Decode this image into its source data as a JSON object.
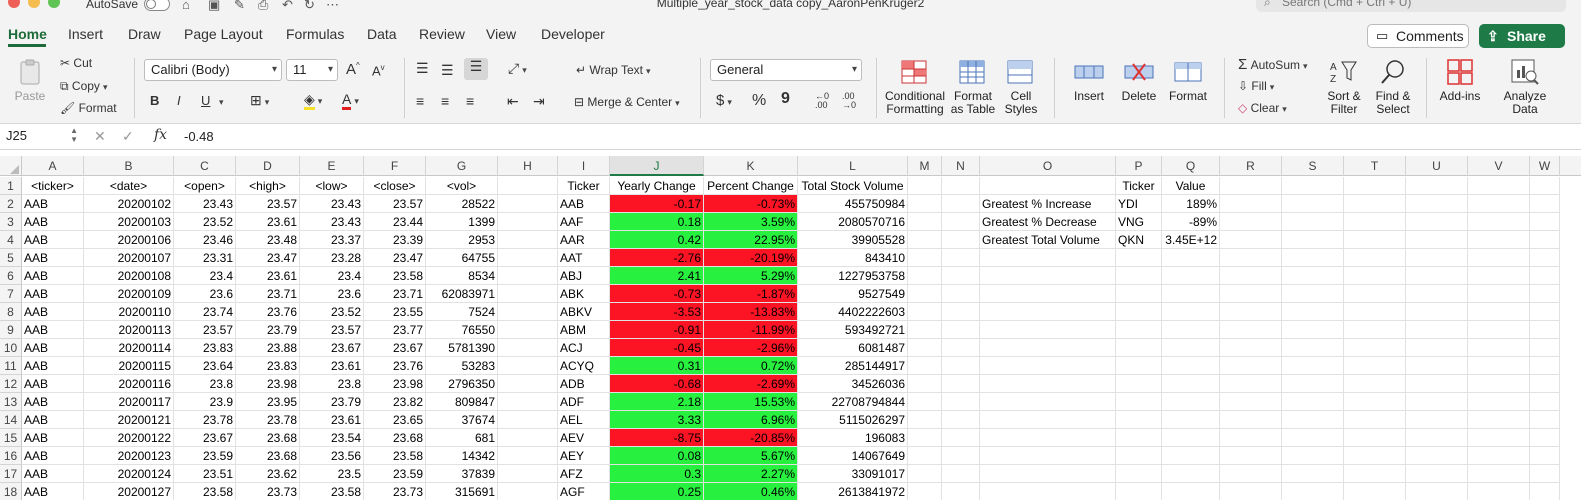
{
  "titlebar": {
    "autosave": "AutoSave",
    "document_title": "Multiple_year_stock_data copy_AaronPenKruger2",
    "search_placeholder": "Search (Cmd + Ctrl + U)"
  },
  "menu": {
    "tabs": [
      "Home",
      "Insert",
      "Draw",
      "Page Layout",
      "Formulas",
      "Data",
      "Review",
      "View",
      "Developer"
    ],
    "active": "Home",
    "comments": "Comments",
    "share": "Share"
  },
  "ribbon": {
    "paste": "Paste",
    "cut": "Cut",
    "copy": "Copy",
    "format": "Format",
    "font_name": "Calibri (Body)",
    "font_size": "11",
    "bold": "B",
    "italic": "I",
    "underline": "U",
    "wrap_text": "Wrap Text",
    "merge_center": "Merge & Center",
    "number_format": "General",
    "currency": "$",
    "percent": "%",
    "comma": "9",
    "inc_decimal": "←0 .00",
    "dec_decimal": ".00 →0",
    "conditional_formatting": [
      "Conditional",
      "Formatting"
    ],
    "format_as_table": [
      "Format",
      "as Table"
    ],
    "cell_styles": [
      "Cell",
      "Styles"
    ],
    "insert": "Insert",
    "delete": "Delete",
    "format_cells": "Format",
    "autosum": "AutoSum",
    "fill": "Fill",
    "clear": "Clear",
    "sort_filter": [
      "Sort &",
      "Filter"
    ],
    "find_select": [
      "Find &",
      "Select"
    ],
    "add_ins": "Add-ins",
    "analyze_data": [
      "Analyze",
      "Data"
    ]
  },
  "formula_bar": {
    "name_box": "J25",
    "fx": "fx",
    "value": "-0.48"
  },
  "colors": {
    "accent": "#1e7a46",
    "negative_fill": "#fc1424",
    "positive_fill": "#27f03f"
  },
  "columns": [
    "A",
    "B",
    "C",
    "D",
    "E",
    "F",
    "G",
    "H",
    "I",
    "J",
    "K",
    "L",
    "M",
    "N",
    "O",
    "P",
    "Q",
    "R",
    "S",
    "T",
    "U",
    "V",
    "W"
  ],
  "selected_column": "J",
  "header_row": {
    "A": "<ticker>",
    "B": "<date>",
    "C": "<open>",
    "D": "<high>",
    "E": "<low>",
    "F": "<close>",
    "G": "<vol>",
    "I": "Ticker",
    "J": "Yearly Change",
    "K": "Percent Change",
    "L": "Total Stock Volume",
    "P": "Ticker",
    "Q": "Value"
  },
  "raw_rows": [
    [
      "AAB",
      "20200102",
      "23.43",
      "23.57",
      "23.43",
      "23.57",
      "28522"
    ],
    [
      "AAB",
      "20200103",
      "23.52",
      "23.61",
      "23.43",
      "23.44",
      "1399"
    ],
    [
      "AAB",
      "20200106",
      "23.46",
      "23.48",
      "23.37",
      "23.39",
      "2953"
    ],
    [
      "AAB",
      "20200107",
      "23.31",
      "23.47",
      "23.28",
      "23.47",
      "64755"
    ],
    [
      "AAB",
      "20200108",
      "23.4",
      "23.61",
      "23.4",
      "23.58",
      "8534"
    ],
    [
      "AAB",
      "20200109",
      "23.6",
      "23.71",
      "23.6",
      "23.71",
      "62083971"
    ],
    [
      "AAB",
      "20200110",
      "23.74",
      "23.76",
      "23.52",
      "23.55",
      "7524"
    ],
    [
      "AAB",
      "20200113",
      "23.57",
      "23.79",
      "23.57",
      "23.77",
      "76550"
    ],
    [
      "AAB",
      "20200114",
      "23.83",
      "23.88",
      "23.67",
      "23.67",
      "5781390"
    ],
    [
      "AAB",
      "20200115",
      "23.64",
      "23.83",
      "23.61",
      "23.76",
      "53283"
    ],
    [
      "AAB",
      "20200116",
      "23.8",
      "23.98",
      "23.8",
      "23.98",
      "2796350"
    ],
    [
      "AAB",
      "20200117",
      "23.9",
      "23.95",
      "23.79",
      "23.82",
      "809847"
    ],
    [
      "AAB",
      "20200121",
      "23.78",
      "23.78",
      "23.61",
      "23.65",
      "37674"
    ],
    [
      "AAB",
      "20200122",
      "23.67",
      "23.68",
      "23.54",
      "23.68",
      "681"
    ],
    [
      "AAB",
      "20200123",
      "23.59",
      "23.68",
      "23.56",
      "23.58",
      "14342"
    ],
    [
      "AAB",
      "20200124",
      "23.51",
      "23.62",
      "23.5",
      "23.59",
      "37839"
    ],
    [
      "AAB",
      "20200127",
      "23.58",
      "23.73",
      "23.58",
      "23.73",
      "315691"
    ]
  ],
  "summary_rows": [
    [
      "AAB",
      "-0.17",
      "-0.73%",
      "455750984",
      "neg"
    ],
    [
      "AAF",
      "0.18",
      "3.59%",
      "2080570716",
      "pos"
    ],
    [
      "AAR",
      "0.42",
      "22.95%",
      "39905528",
      "pos"
    ],
    [
      "AAT",
      "-2.76",
      "-20.19%",
      "843410",
      "neg"
    ],
    [
      "ABJ",
      "2.41",
      "5.29%",
      "1227953758",
      "pos"
    ],
    [
      "ABK",
      "-0.73",
      "-1.87%",
      "9527549",
      "neg"
    ],
    [
      "ABKV",
      "-3.53",
      "-13.83%",
      "4402222603",
      "neg"
    ],
    [
      "ABM",
      "-0.91",
      "-11.99%",
      "593492721",
      "neg"
    ],
    [
      "ACJ",
      "-0.45",
      "-2.96%",
      "6081487",
      "neg"
    ],
    [
      "ACYQ",
      "0.31",
      "0.72%",
      "285144917",
      "pos"
    ],
    [
      "ADB",
      "-0.68",
      "-2.69%",
      "34526036",
      "neg"
    ],
    [
      "ADF",
      "2.18",
      "15.53%",
      "22708794844",
      "pos"
    ],
    [
      "AEL",
      "3.33",
      "6.96%",
      "5115026297",
      "pos"
    ],
    [
      "AEV",
      "-8.75",
      "-20.85%",
      "196083",
      "neg"
    ],
    [
      "AEY",
      "0.08",
      "5.67%",
      "14067649",
      "pos"
    ],
    [
      "AFZ",
      "0.3",
      "2.27%",
      "33091017",
      "pos"
    ],
    [
      "AGF",
      "0.25",
      "0.46%",
      "2613841972",
      "pos"
    ]
  ],
  "greatest": [
    {
      "label": "Greatest % Increase",
      "ticker": "YDI",
      "value": "189%"
    },
    {
      "label": "Greatest % Decrease",
      "ticker": "VNG",
      "value": "-89%"
    },
    {
      "label": "Greatest Total Volume",
      "ticker": "QKN",
      "value": "3.45E+12"
    }
  ]
}
